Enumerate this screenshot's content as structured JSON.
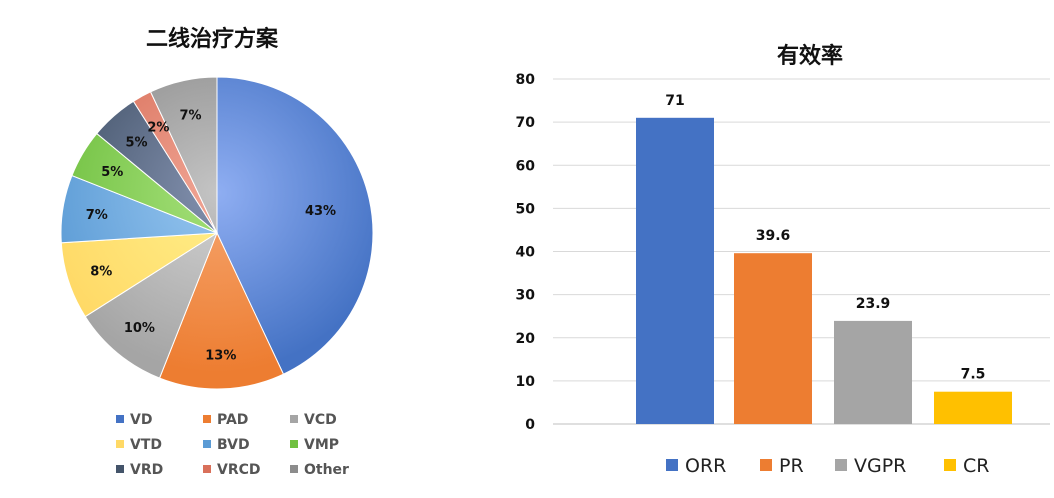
{
  "chart_data": [
    {
      "type": "pie",
      "title": "二线治疗方案",
      "categories": [
        "VD",
        "PAD",
        "VCD",
        "VTD",
        "BVD",
        "VMP",
        "VRD",
        "VRCD",
        "Other"
      ],
      "values": [
        43,
        13,
        10,
        8,
        7,
        5,
        5,
        2,
        7
      ],
      "value_labels": [
        "43%",
        "13%",
        "10%",
        "8%",
        "7%",
        "5%",
        "5%",
        "2%",
        "7%"
      ],
      "colors": [
        "#4472C4",
        "#ED7D31",
        "#A5A5A5",
        "#FFD966",
        "#5B9BD5",
        "#70C040",
        "#44546A",
        "#D9705A",
        "#8C8C8C"
      ],
      "light_colors": [
        "#8FAEF2",
        "#F6A56E",
        "#D2D2D2",
        "#FFEF8A",
        "#97C6F0",
        "#A5E07A",
        "#8391AF",
        "#F0A595",
        "#C4C4C4"
      ],
      "legend_position": "bottom"
    },
    {
      "type": "bar",
      "title": "有效率",
      "categories": [
        "ORR",
        "PR",
        "VGPR",
        "CR"
      ],
      "values": [
        71,
        39.6,
        23.9,
        7.5
      ],
      "value_labels": [
        "71",
        "39.6",
        "23.9",
        "7.5"
      ],
      "colors": [
        "#4472C4",
        "#ED7D31",
        "#A5A5A5",
        "#FFC000"
      ],
      "ylim": [
        0,
        80
      ],
      "yticks": [
        0,
        10,
        20,
        30,
        40,
        50,
        60,
        70,
        80
      ],
      "grid": true,
      "legend_position": "bottom"
    }
  ]
}
